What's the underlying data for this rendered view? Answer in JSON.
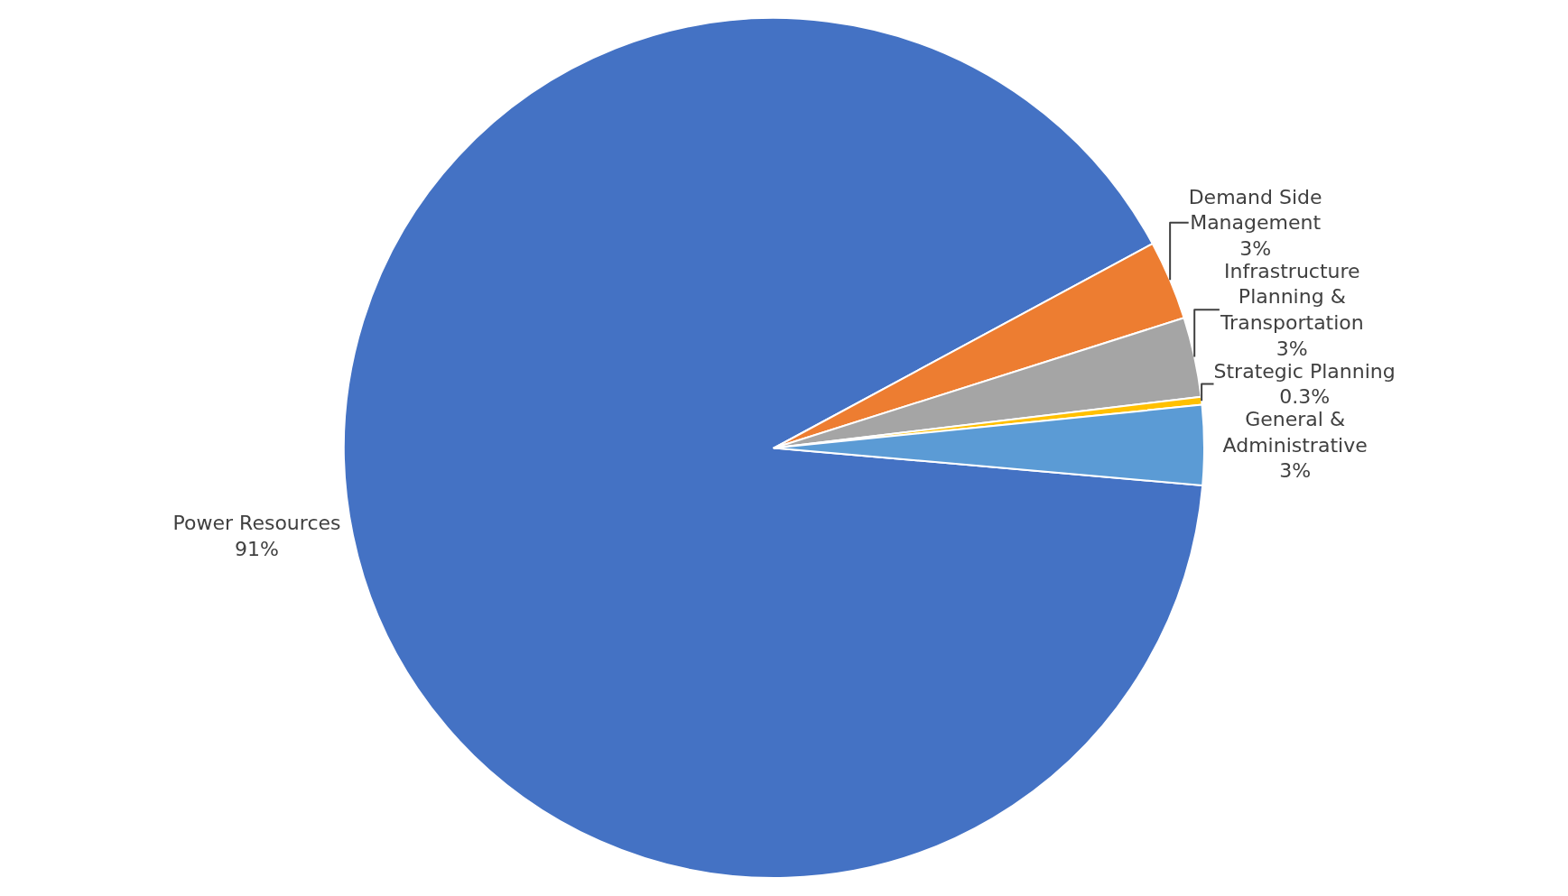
{
  "chart_data": {
    "type": "pie",
    "categories": [
      "Power Resources",
      "Demand Side Management",
      "Infrastructure Planning & Transportation",
      "Strategic Planning",
      "General & Administrative"
    ],
    "values": [
      91,
      3,
      3,
      0.3,
      3
    ],
    "colors": [
      "#4472c4",
      "#ed7d31",
      "#a5a5a5",
      "#ffc000",
      "#5b9bd5"
    ],
    "value_labels": [
      "91%",
      "3%",
      "3%",
      "0.3%",
      "3%"
    ],
    "legend": false
  }
}
